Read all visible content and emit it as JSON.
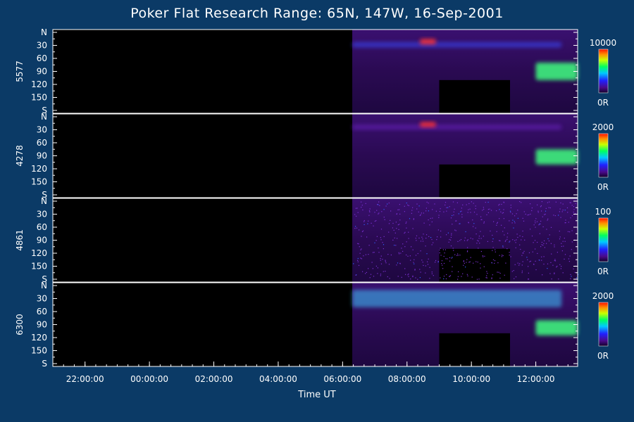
{
  "chart_data": {
    "type": "heatmap",
    "title": "Poker Flat Research Range: 65N, 147W, 16-Sep-2001",
    "xlabel": "Time UT",
    "x_ticks": [
      "22:00:00",
      "00:00:00",
      "02:00:00",
      "04:00:00",
      "06:00:00",
      "08:00:00",
      "10:00:00",
      "12:00:00"
    ],
    "x_tick_hours": [
      22,
      24,
      26,
      28,
      30,
      32,
      34,
      36
    ],
    "xlim_hours": [
      21,
      37.3
    ],
    "data_start_hour": 30.3,
    "gap_hours": [
      33.0,
      35.2
    ],
    "y_ticks": [
      "N",
      "30",
      "60",
      "90",
      "120",
      "150",
      "S"
    ],
    "y_tick_values": [
      0,
      30,
      60,
      90,
      120,
      150,
      180
    ],
    "ylim": [
      0,
      180
    ],
    "panels": [
      {
        "label": "5577",
        "scale_max": "10000",
        "scale_min": "0R",
        "features": [
          {
            "kind": "arc",
            "t": [
              30.3,
              36.8
            ],
            "lat": [
              22,
              35
            ],
            "intensity": 0.35
          },
          {
            "kind": "brightening",
            "t": [
              32.4,
              32.9
            ],
            "lat": [
              15,
              28
            ],
            "intensity": 1.0
          },
          {
            "kind": "surge",
            "t": [
              36.0,
              37.3
            ],
            "lat": [
              70,
              110
            ],
            "intensity": 0.8
          }
        ]
      },
      {
        "label": "4278",
        "scale_max": "2000",
        "scale_min": "0R",
        "features": [
          {
            "kind": "arc",
            "t": [
              30.3,
              36.8
            ],
            "lat": [
              18,
              30
            ],
            "intensity": 0.3
          },
          {
            "kind": "brightening",
            "t": [
              32.4,
              32.9
            ],
            "lat": [
              12,
              24
            ],
            "intensity": 1.0
          },
          {
            "kind": "surge",
            "t": [
              36.0,
              37.3
            ],
            "lat": [
              75,
              110
            ],
            "intensity": 0.7
          }
        ]
      },
      {
        "label": "4861",
        "scale_max": "100",
        "scale_min": "0R",
        "features": [
          {
            "kind": "noise",
            "t": [
              30.3,
              37.3
            ],
            "lat": [
              0,
              180
            ],
            "intensity": 0.25
          }
        ]
      },
      {
        "label": "6300",
        "scale_max": "2000",
        "scale_min": "0R",
        "features": [
          {
            "kind": "arc",
            "t": [
              30.3,
              36.8
            ],
            "lat": [
              10,
              50
            ],
            "intensity": 0.55
          },
          {
            "kind": "surge",
            "t": [
              36.0,
              37.3
            ],
            "lat": [
              80,
              115
            ],
            "intensity": 0.7
          }
        ]
      }
    ]
  }
}
